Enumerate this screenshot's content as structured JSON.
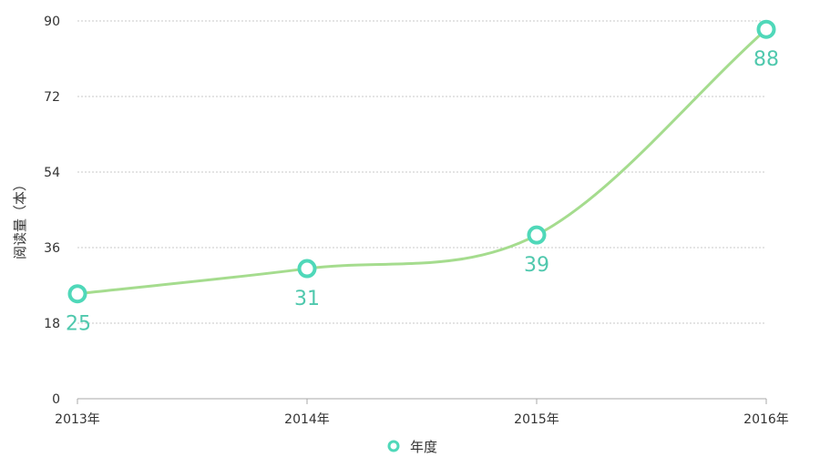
{
  "chart_data": {
    "type": "line",
    "categories": [
      "2013年",
      "2014年",
      "2015年",
      "2016年"
    ],
    "series": [
      {
        "name": "年度",
        "values": [
          25,
          31,
          39,
          88
        ]
      }
    ],
    "ylabel": "阅读量（本）",
    "xlabel": "",
    "title": "",
    "ylim": [
      0,
      90
    ],
    "yticks": [
      "0",
      "18",
      "36",
      "54",
      "72",
      "90"
    ],
    "grid": true,
    "legend": "bottom-center",
    "colors": {
      "line": "#a5dc8e",
      "marker": "#4fd8b9",
      "label": "#4fc8ad",
      "grid": "#c8c8c8",
      "axis": "#aaaaaa"
    }
  }
}
